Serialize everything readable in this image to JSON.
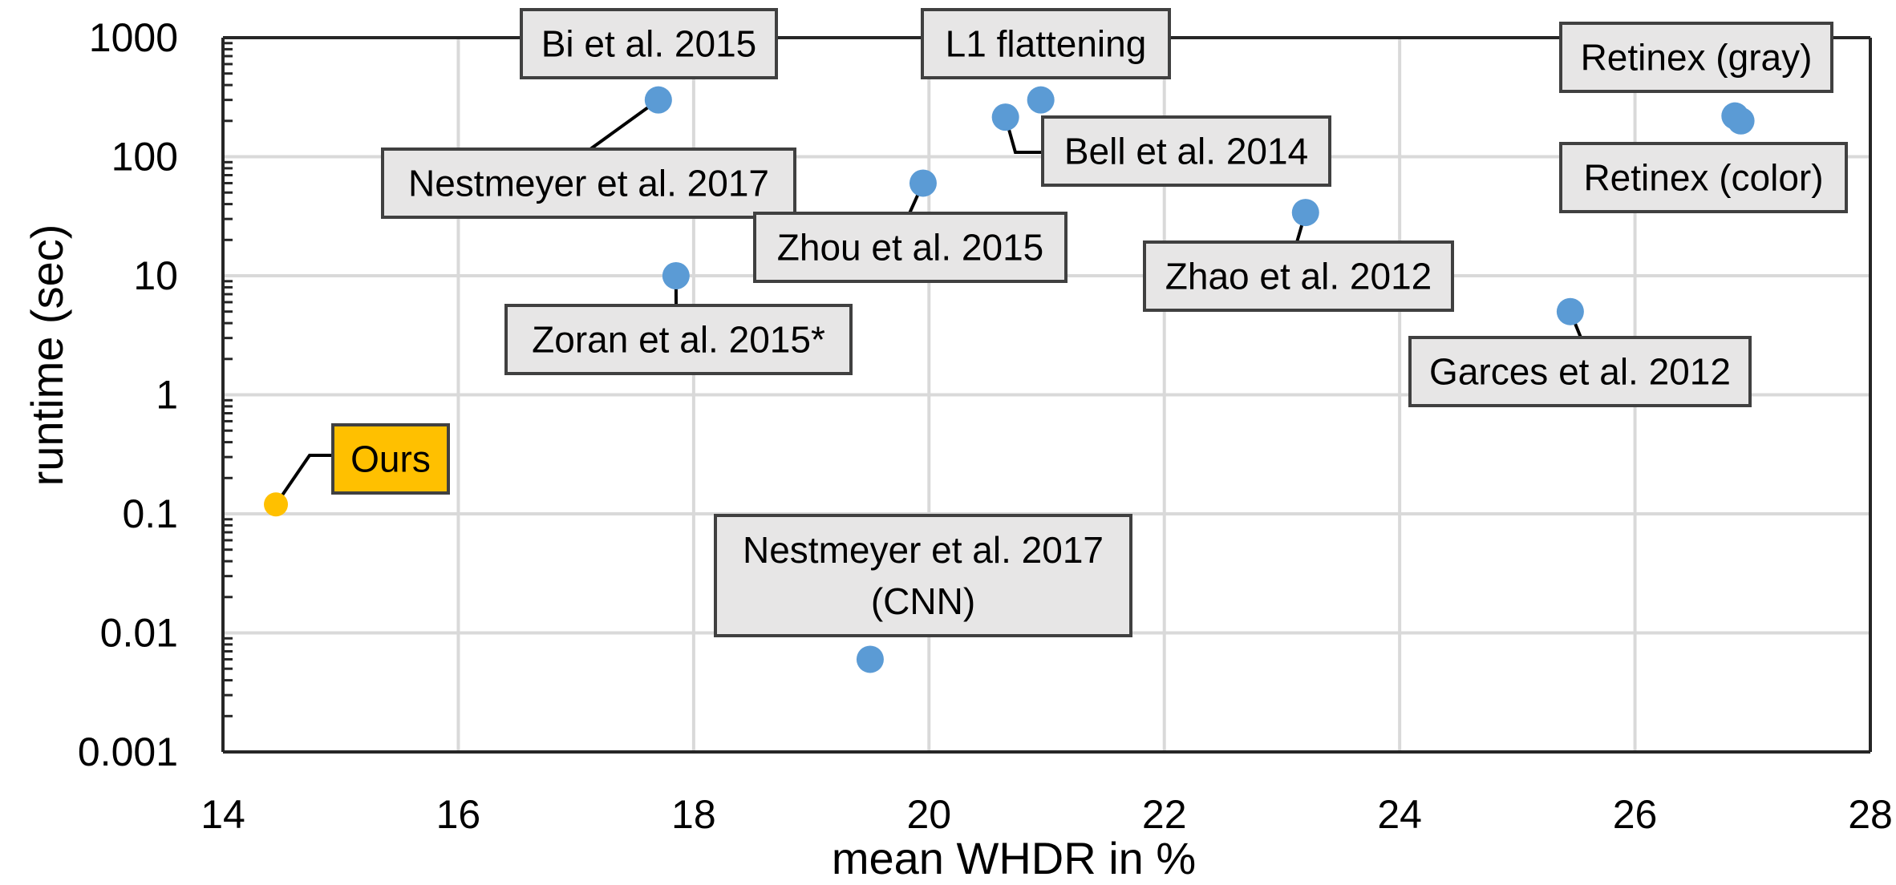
{
  "chart_data": {
    "type": "scatter",
    "title": "",
    "xlabel": "mean WHDR in %",
    "ylabel": "runtime (sec)",
    "xlim": [
      14,
      28
    ],
    "ylim": [
      0.001,
      1000
    ],
    "y_scale": "log",
    "x_ticks": [
      14,
      16,
      18,
      20,
      22,
      24,
      26,
      28
    ],
    "y_ticks": [
      0.001,
      0.01,
      0.1,
      1,
      10,
      100,
      1000
    ],
    "x_tick_labels": [
      "14",
      "16",
      "18",
      "20",
      "22",
      "24",
      "26",
      "28"
    ],
    "y_tick_labels": [
      "0.001",
      "0.01",
      "0.1",
      "1",
      "10",
      "100",
      "1000"
    ],
    "grid": true,
    "colors": {
      "methods": "#5B9BD5",
      "ours": "#FFC000",
      "label_box": "#E7E6E6",
      "ours_box": "#FFC000"
    },
    "points": [
      {
        "label": [
          "Ours"
        ],
        "x": 14.45,
        "y": 0.12,
        "highlight": true
      },
      {
        "label": [
          "Bi et al. 2015"
        ],
        "x": 17.7,
        "y": 300
      },
      {
        "label": [
          "Nestmeyer et al. 2017"
        ],
        "x": 17.7,
        "y": 300
      },
      {
        "label": [
          "Zoran et al. 2015*"
        ],
        "x": 17.85,
        "y": 10
      },
      {
        "label": [
          "Zhou et al. 2015"
        ],
        "x": 19.95,
        "y": 60
      },
      {
        "label": [
          "Nestmeyer et al. 2017",
          "(CNN)"
        ],
        "x": 19.5,
        "y": 0.006
      },
      {
        "label": [
          "L1 flattening"
        ],
        "x": 20.95,
        "y": 300
      },
      {
        "label": [
          "Bell et al. 2014"
        ],
        "x": 20.65,
        "y": 215
      },
      {
        "label": [
          "Zhao et al. 2012"
        ],
        "x": 23.2,
        "y": 34
      },
      {
        "label": [
          "Garces et al. 2012"
        ],
        "x": 25.45,
        "y": 5
      },
      {
        "label": [
          "Retinex (gray)"
        ],
        "x": 26.85,
        "y": 220
      },
      {
        "label": [
          "Retinex (color)"
        ],
        "x": 26.9,
        "y": 200
      }
    ]
  }
}
